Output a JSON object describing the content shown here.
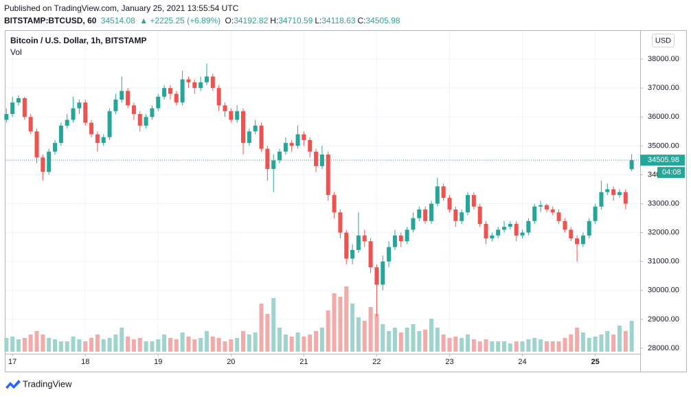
{
  "header": {
    "published": "Published on TradingView.com, January 25, 2021 13:55:54 UTC",
    "symbol": "BITSTAMP:BTCUSD, 60",
    "last": "34514.08",
    "change": "▲ +2225.25 (+6.89%)",
    "ohlc": [
      {
        "label": "O:",
        "value": "34192.82"
      },
      {
        "label": "H:",
        "value": "34710.59"
      },
      {
        "label": "L:",
        "value": "34118.63"
      },
      {
        "label": "C:",
        "value": "34505.98"
      }
    ]
  },
  "footer": "TradingView",
  "chart_data": {
    "type": "candlestick",
    "title": "Bitcoin / U.S. Dollar, 1h, BITSTAMP",
    "volume_label": "Vol",
    "currency": "USD",
    "last_price_label": "34505.98",
    "countdown": "04:08",
    "up_color": "#26a69a",
    "down_color": "#ef5350",
    "volume_up_color": "#9fd3cd",
    "volume_down_color": "#f3abaa",
    "grid": true,
    "xlim": [
      -2.3,
      206.8
    ],
    "ylim": [
      27810,
      39000
    ],
    "vlim": [
      0,
      120
    ],
    "xticks": [
      {
        "value": 0,
        "label": "17"
      },
      {
        "value": 24,
        "label": "18"
      },
      {
        "value": 48,
        "label": "19"
      },
      {
        "value": 72,
        "label": "20"
      },
      {
        "value": 96,
        "label": "21"
      },
      {
        "value": 120,
        "label": "22"
      },
      {
        "value": 144,
        "label": "23"
      },
      {
        "value": 168,
        "label": "24"
      },
      {
        "value": 192,
        "label": "25"
      }
    ],
    "yticks": [
      {
        "value": 28000,
        "label": "28000.00"
      },
      {
        "value": 29000,
        "label": "29000.00"
      },
      {
        "value": 30000,
        "label": "30000.00"
      },
      {
        "value": 31000,
        "label": "31000.00"
      },
      {
        "value": 32000,
        "label": "32000.00"
      },
      {
        "value": 33000,
        "label": "33000.00"
      },
      {
        "value": 34000,
        "label": "34000.00"
      },
      {
        "value": 35000,
        "label": "35000.00"
      },
      {
        "value": 36000,
        "label": "36000.00"
      },
      {
        "value": 37000,
        "label": "37000.00"
      },
      {
        "value": 38000,
        "label": "38000.00"
      }
    ],
    "x": [
      -2,
      0,
      2,
      4,
      6,
      8,
      10,
      12,
      14,
      16,
      18,
      20,
      22,
      24,
      26,
      28,
      30,
      32,
      34,
      36,
      38,
      40,
      42,
      44,
      46,
      48,
      50,
      52,
      54,
      56,
      58,
      60,
      62,
      64,
      66,
      68,
      70,
      72,
      74,
      76,
      78,
      80,
      82,
      84,
      86,
      88,
      90,
      92,
      94,
      96,
      98,
      100,
      102,
      104,
      106,
      108,
      110,
      112,
      114,
      116,
      118,
      120,
      122,
      124,
      126,
      128,
      130,
      132,
      134,
      136,
      138,
      140,
      142,
      144,
      146,
      148,
      150,
      152,
      154,
      156,
      158,
      160,
      162,
      164,
      166,
      168,
      170,
      172,
      174,
      176,
      178,
      180,
      182,
      184,
      186,
      188,
      190,
      192,
      194,
      196,
      198,
      200,
      202,
      204
    ],
    "open": [
      35900,
      36100,
      36500,
      36650,
      36000,
      35500,
      34600,
      34100,
      34800,
      35100,
      35700,
      35900,
      36300,
      36500,
      35800,
      35400,
      35100,
      35300,
      36200,
      36600,
      36900,
      36400,
      36100,
      35700,
      36000,
      36300,
      36700,
      37000,
      36800,
      36500,
      37300,
      37200,
      37000,
      37200,
      37400,
      37000,
      36400,
      36200,
      35900,
      36200,
      35100,
      35500,
      35700,
      34900,
      34200,
      34500,
      34800,
      35100,
      35000,
      35400,
      35200,
      34800,
      34300,
      34700,
      33300,
      32700,
      32000,
      31100,
      31400,
      31900,
      31700,
      30800,
      30200,
      31000,
      31500,
      31900,
      31700,
      32100,
      32500,
      32800,
      32400,
      33000,
      33600,
      33200,
      32800,
      32400,
      32700,
      33300,
      32900,
      32300,
      31800,
      31900,
      32100,
      32200,
      32300,
      31900,
      32000,
      32400,
      32900,
      32950,
      32800,
      32700,
      32400,
      32100,
      31800,
      31600,
      31900,
      32400,
      32900,
      33400,
      33500,
      33300,
      33400,
      34192.82
    ],
    "high": [
      36300,
      36700,
      36750,
      36700,
      36100,
      35600,
      34700,
      34900,
      35200,
      35800,
      36100,
      36700,
      36600,
      36600,
      35900,
      35500,
      35400,
      36300,
      36800,
      37400,
      37000,
      36500,
      36200,
      36100,
      36400,
      36800,
      37100,
      37100,
      36900,
      37600,
      37400,
      37300,
      37400,
      37850,
      37500,
      37100,
      36500,
      36300,
      36400,
      36300,
      35600,
      35900,
      35800,
      35000,
      34700,
      34900,
      35300,
      35200,
      35700,
      35500,
      35300,
      34900,
      35000,
      34800,
      33400,
      32800,
      32100,
      31600,
      32700,
      32100,
      31800,
      30900,
      31200,
      31700,
      32100,
      32000,
      32200,
      32700,
      32900,
      32900,
      33100,
      33900,
      33700,
      33300,
      32900,
      32800,
      33400,
      33400,
      33000,
      32400,
      32000,
      32200,
      32400,
      32400,
      32400,
      32100,
      32500,
      33000,
      33100,
      33000,
      32900,
      32800,
      32500,
      32200,
      31900,
      32000,
      32500,
      33000,
      33800,
      33700,
      33600,
      33500,
      33500,
      34710.59
    ],
    "low": [
      35800,
      36000,
      36400,
      35900,
      35400,
      34400,
      33800,
      34000,
      34700,
      35000,
      35600,
      35800,
      36100,
      35700,
      35300,
      34800,
      35000,
      35200,
      36100,
      36500,
      36300,
      35900,
      35500,
      35600,
      35900,
      36200,
      36600,
      36600,
      36400,
      36400,
      37000,
      36800,
      36900,
      37100,
      36900,
      36200,
      36000,
      35800,
      35800,
      34700,
      35000,
      35400,
      34800,
      33800,
      33400,
      34400,
      34700,
      34800,
      34900,
      35000,
      34600,
      34100,
      34200,
      33100,
      32500,
      31800,
      30900,
      30900,
      31300,
      31500,
      30600,
      29100,
      30000,
      30800,
      31400,
      31500,
      31600,
      32000,
      32400,
      32300,
      32300,
      32900,
      33100,
      32700,
      32200,
      32300,
      32600,
      32800,
      32200,
      31600,
      31700,
      31800,
      32000,
      32100,
      31700,
      31800,
      31900,
      32300,
      32700,
      32700,
      32600,
      32300,
      32000,
      31700,
      31000,
      31500,
      31800,
      32300,
      32800,
      33300,
      33100,
      33200,
      32800,
      34118.63
    ],
    "close": [
      36100,
      36500,
      36650,
      36000,
      35500,
      34600,
      34100,
      34800,
      35100,
      35700,
      35900,
      36300,
      36500,
      35800,
      35400,
      35100,
      35300,
      36200,
      36600,
      36900,
      36400,
      36100,
      35700,
      36000,
      36300,
      36700,
      37000,
      36800,
      36500,
      37300,
      37200,
      37000,
      37200,
      37400,
      37000,
      36400,
      36200,
      35900,
      36200,
      35100,
      35500,
      35700,
      34900,
      34200,
      34500,
      34800,
      35100,
      35000,
      35400,
      35200,
      34800,
      34300,
      34700,
      33300,
      32700,
      32000,
      31100,
      31400,
      31900,
      31700,
      30800,
      30200,
      31000,
      31500,
      31900,
      31700,
      32100,
      32500,
      32800,
      32400,
      33000,
      33600,
      33200,
      32800,
      32400,
      32700,
      33300,
      32900,
      32300,
      31800,
      31900,
      32100,
      32200,
      32300,
      31900,
      32000,
      32400,
      32900,
      32950,
      32800,
      32700,
      32400,
      32100,
      31800,
      31600,
      31900,
      32400,
      32900,
      33400,
      33500,
      33300,
      33400,
      33000,
      34505.98
    ],
    "volume": [
      20,
      22,
      18,
      20,
      25,
      30,
      25,
      20,
      18,
      15,
      15,
      22,
      18,
      15,
      20,
      25,
      18,
      20,
      25,
      35,
      22,
      18,
      20,
      15,
      15,
      18,
      25,
      20,
      18,
      28,
      22,
      18,
      20,
      30,
      22,
      20,
      15,
      18,
      20,
      30,
      25,
      28,
      70,
      55,
      78,
      35,
      25,
      22,
      28,
      22,
      25,
      30,
      35,
      60,
      85,
      80,
      95,
      70,
      50,
      45,
      65,
      55,
      40,
      30,
      35,
      28,
      35,
      40,
      30,
      32,
      48,
      35,
      25,
      20,
      22,
      20,
      25,
      18,
      15,
      18,
      15,
      15,
      15,
      12,
      15,
      15,
      18,
      20,
      18,
      15,
      15,
      15,
      20,
      25,
      35,
      28,
      20,
      22,
      25,
      30,
      25,
      38,
      30,
      45
    ]
  }
}
